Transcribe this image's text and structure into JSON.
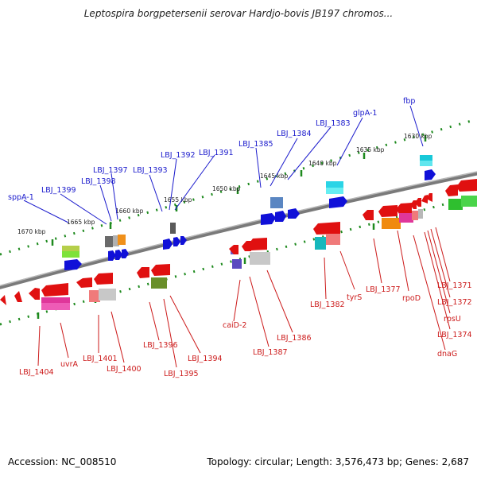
{
  "title": "Leptospira borgpetersenii serovar Hardjo-bovis JB197 chromos...",
  "footer": {
    "accession": "Accession: NC_008510",
    "summary": "Topology: circular; Length: 3,576,473 bp; Genes: 2,687"
  },
  "ticks": [
    "1670 kbp",
    "1665 kbp",
    "1660 kbp",
    "1655 kbp",
    "1650 kbp",
    "1645 kbp",
    "1640 kbp",
    "1635 kbp",
    "1630 kbp"
  ],
  "forward_labels": [
    "sppA-1",
    "LBJ_1399",
    "LBJ_1398",
    "LBJ_1397",
    "LBJ_1393",
    "LBJ_1392",
    "LBJ_1391",
    "LBJ_1385",
    "LBJ_1384",
    "LBJ_1383",
    "glpA-1",
    "fbp"
  ],
  "reverse_labels": [
    "LBJ_1404",
    "uvrA",
    "LBJ_1401",
    "LBJ_1400",
    "LBJ_1396",
    "LBJ_1395",
    "LBJ_1394",
    "caiD-2",
    "LBJ_1387",
    "LBJ_1386",
    "LBJ_1382",
    "tyrS",
    "LBJ_1377",
    "rpoD",
    "LBJ_1371",
    "LBJ_1372",
    "rpsU",
    "LBJ_1374",
    "dnaG"
  ],
  "colors": {
    "forward_label": "#1a1acc",
    "reverse_label": "#cc1a1a",
    "backbone": "#8a8a8a",
    "tick": "#1e8a1e"
  }
}
